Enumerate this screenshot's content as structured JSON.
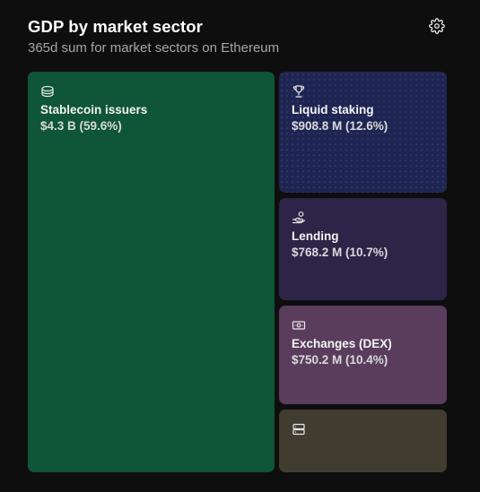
{
  "header": {
    "title": "GDP by market sector",
    "subtitle": "365d sum for market sectors on Ethereum",
    "settings_icon": "gear-icon"
  },
  "chart_data": {
    "type": "treemap",
    "title": "GDP by market sector",
    "subtitle": "365d sum for market sectors on Ethereum",
    "sectors": [
      {
        "name": "Stablecoin issuers",
        "value_label": "$4.3 B (59.6%)",
        "value": 4300000000,
        "share": 59.6,
        "icon": "coins-icon",
        "color": "#0f5537"
      },
      {
        "name": "Liquid staking",
        "value_label": "$908.8 M (12.6%)",
        "value": 908800000,
        "share": 12.6,
        "icon": "trophy-icon",
        "color": "#1f2552"
      },
      {
        "name": "Lending",
        "value_label": "$768.2 M (10.7%)",
        "value": 768200000,
        "share": 10.7,
        "icon": "hand-coin-icon",
        "color": "#2e2447"
      },
      {
        "name": "Exchanges (DEX)",
        "value_label": "$750.2 M (10.4%)",
        "value": 750200000,
        "share": 10.4,
        "icon": "banknote-icon",
        "color": "#5a3d5c"
      },
      {
        "name": "",
        "value_label": "",
        "value": null,
        "share": 6.7,
        "icon": "server-icon",
        "color": "#413c30"
      }
    ]
  }
}
